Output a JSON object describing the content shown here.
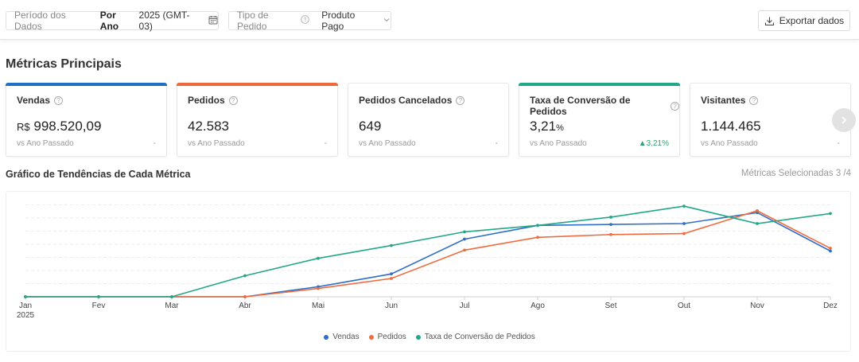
{
  "filters": {
    "period_label": "Período dos Dados",
    "period_mode": "Por Ano",
    "period_value": "2025 (GMT-03)",
    "order_type_label": "Tipo de Pedido",
    "order_type_value": "Produto Pago"
  },
  "export_label": "Exportar dados",
  "section_title": "Métricas Principais",
  "cards": [
    {
      "title": "Vendas",
      "currency": "R$",
      "value": "998.520,09",
      "unit": "",
      "compare": "vs Ano Passado",
      "delta": "-",
      "color": "#1f6fc5"
    },
    {
      "title": "Pedidos",
      "currency": "",
      "value": "42.583",
      "unit": "",
      "compare": "vs Ano Passado",
      "delta": "-",
      "color": "#ee6a3c"
    },
    {
      "title": "Pedidos Cancelados",
      "currency": "",
      "value": "649",
      "unit": "",
      "compare": "vs Ano Passado",
      "delta": "-",
      "color": ""
    },
    {
      "title": "Taxa de Conversão de Pedidos",
      "currency": "",
      "value": "3,21",
      "unit": "%",
      "compare": "vs Ano Passado",
      "delta": "▲3,21%",
      "color": "#1ea889"
    },
    {
      "title": "Visitantes",
      "currency": "",
      "value": "1.144.465",
      "unit": "",
      "compare": "vs Ano Passado",
      "delta": "-",
      "color": ""
    }
  ],
  "chart_title": "Gráfico de Tendências de Cada Métrica",
  "metrics_selected": "Métricas Selecionadas 3 /4",
  "chart_data": {
    "type": "line",
    "categories": [
      "Jan",
      "Fev",
      "Mar",
      "Abr",
      "Mai",
      "Jun",
      "Jul",
      "Ago",
      "Set",
      "Out",
      "Nov",
      "Dez"
    ],
    "first_tick_sublabel": "2025",
    "grid": true,
    "legend_position": "bottom",
    "series": [
      {
        "name": "Vendas",
        "color": "#2e6fc8",
        "values": [
          0,
          0,
          0,
          0,
          0.11,
          0.25,
          0.63,
          0.78,
          0.79,
          0.8,
          0.92,
          0.5
        ]
      },
      {
        "name": "Pedidos",
        "color": "#ef6b3d",
        "values": [
          0,
          0,
          0,
          0,
          0.09,
          0.2,
          0.51,
          0.65,
          0.68,
          0.69,
          0.94,
          0.53
        ]
      },
      {
        "name": "Taxa de Conversão de Pedidos",
        "color": "#22a887",
        "values": [
          0,
          0,
          0,
          0.23,
          0.42,
          0.56,
          0.71,
          0.78,
          0.87,
          0.99,
          0.8,
          0.91
        ]
      }
    ]
  }
}
